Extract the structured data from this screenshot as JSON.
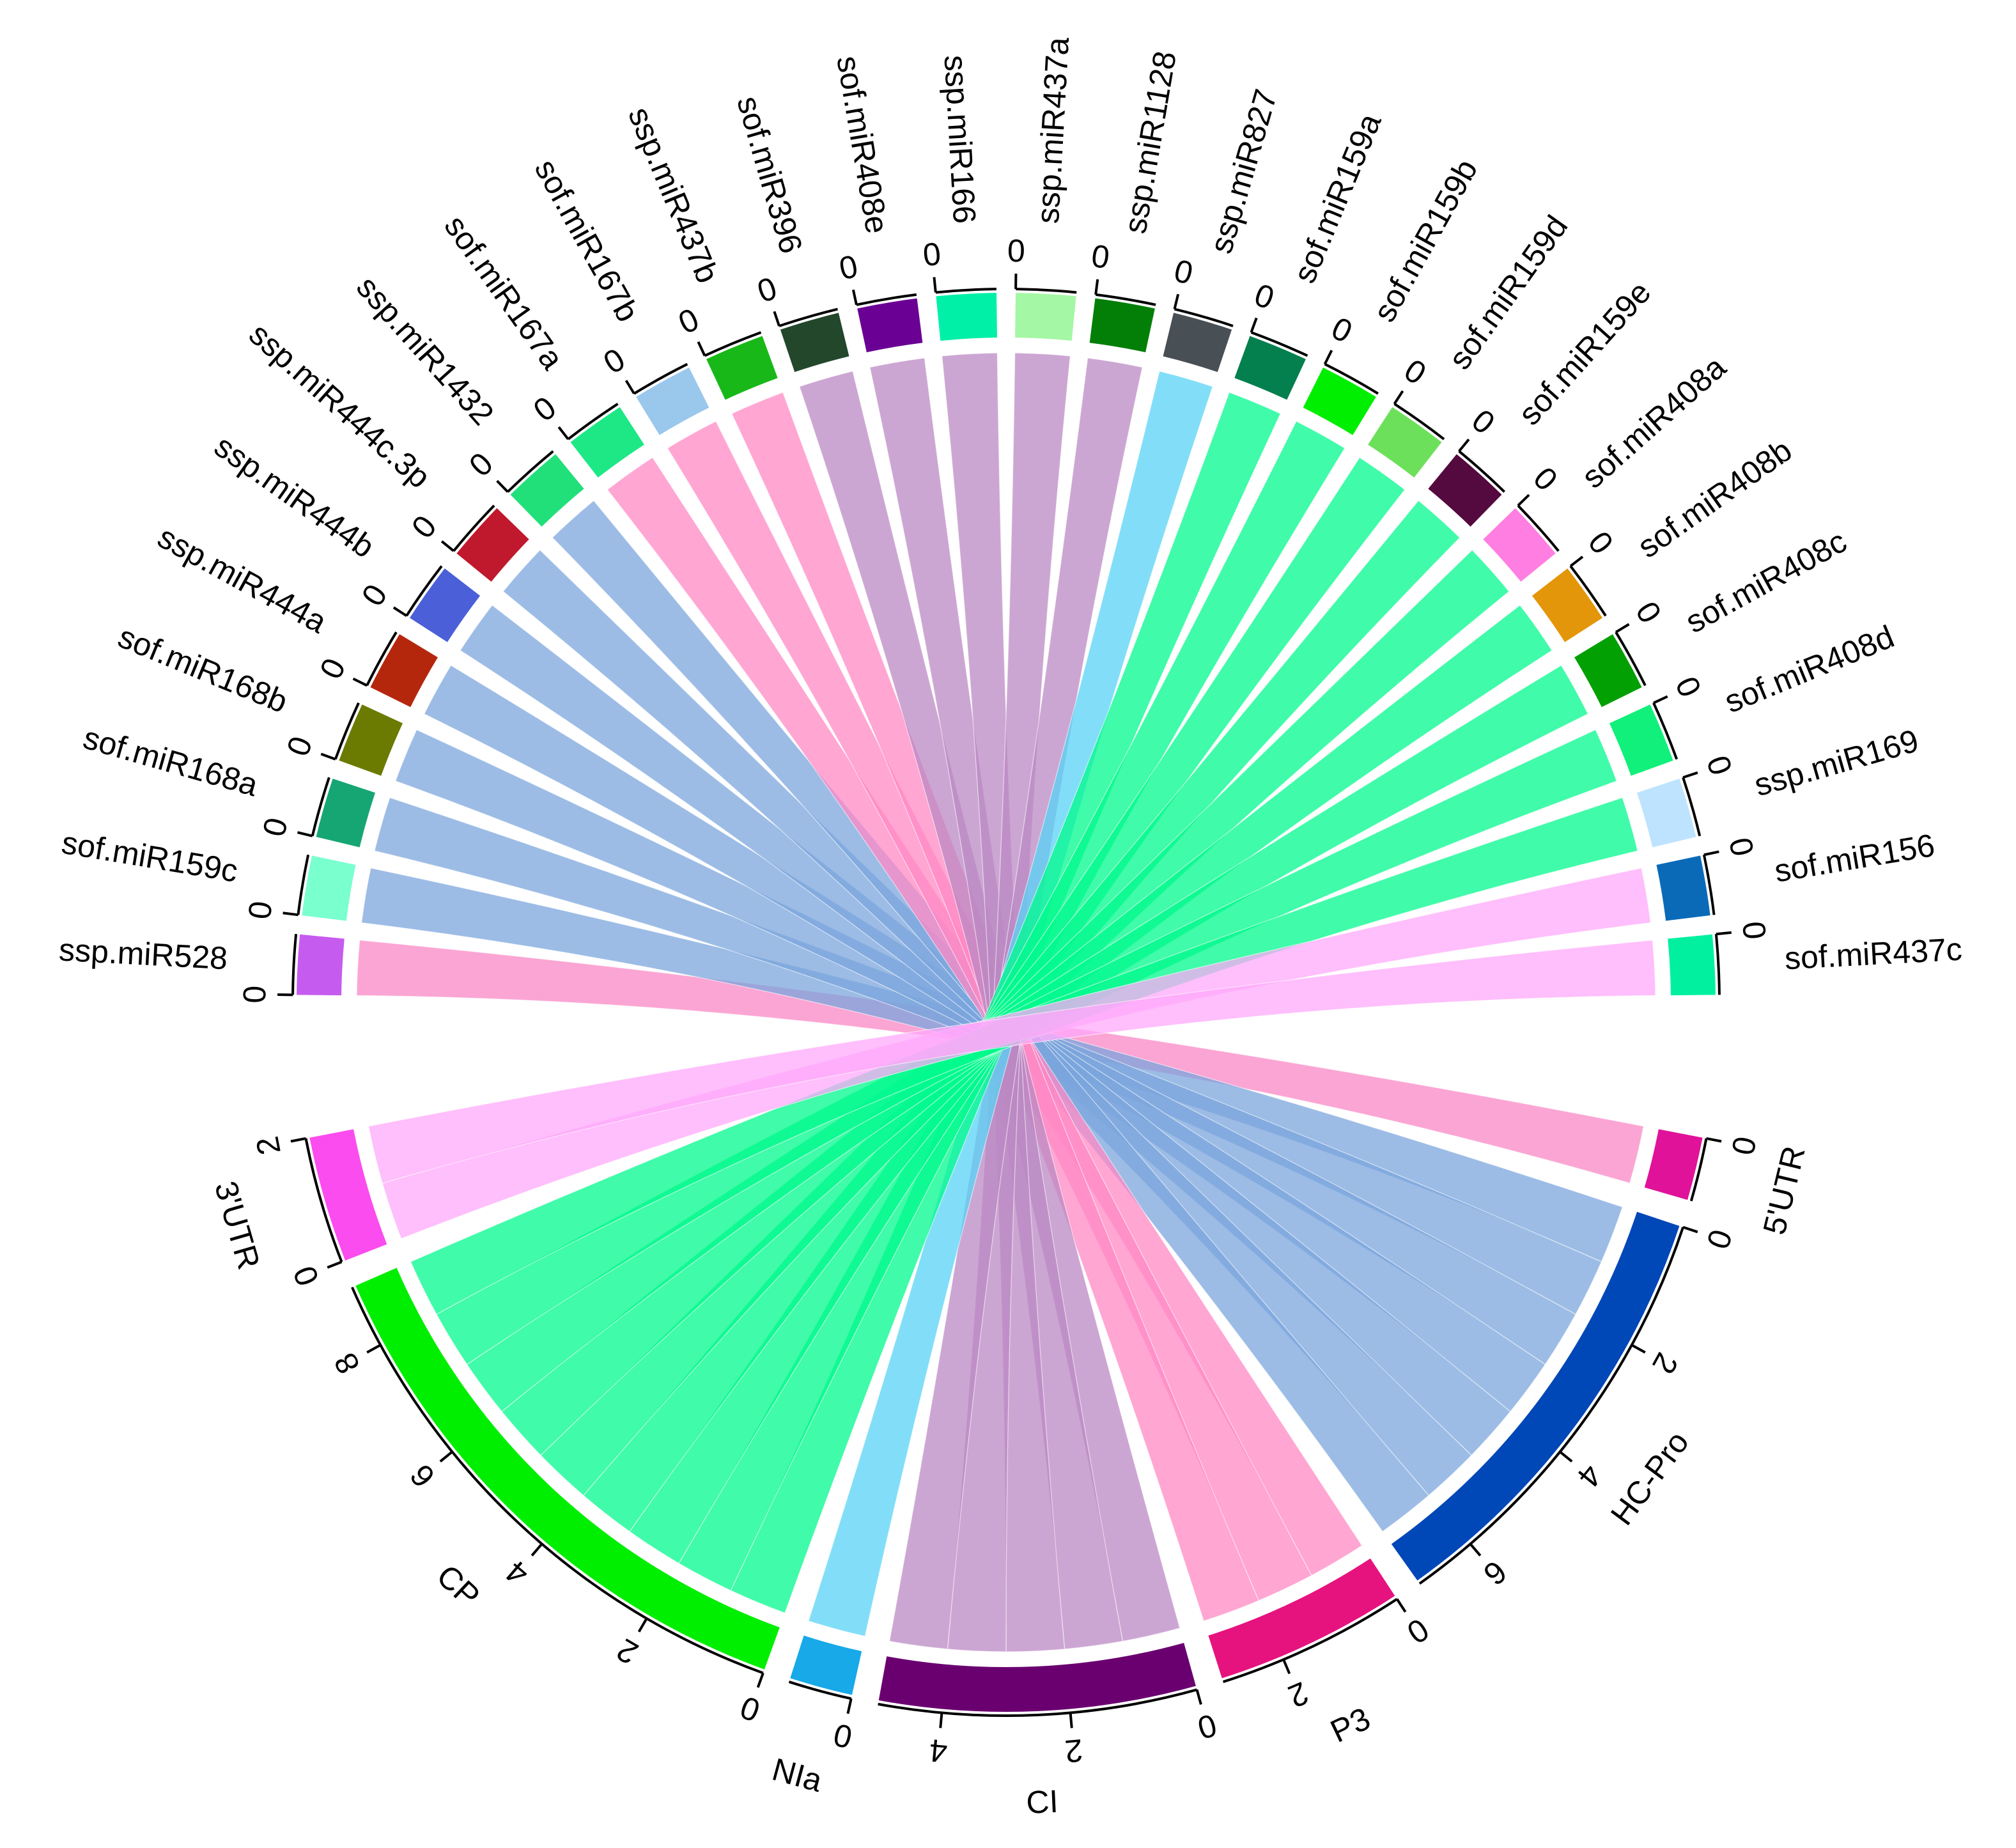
{
  "chart_data": {
    "type": "chord",
    "sources": [
      {
        "name": "ssp.miR528",
        "color": "#c65bf0",
        "value": 1,
        "ticks": [
          0
        ]
      },
      {
        "name": "sof.miR159c",
        "color": "#7affcf",
        "value": 1,
        "ticks": [
          0
        ]
      },
      {
        "name": "sof.miR168a",
        "color": "#16a673",
        "value": 1,
        "ticks": [
          0
        ]
      },
      {
        "name": "sof.miR168b",
        "color": "#6b7a00",
        "value": 1,
        "ticks": [
          0
        ]
      },
      {
        "name": "ssp.miR444a",
        "color": "#b5270d",
        "value": 1,
        "ticks": [
          0
        ]
      },
      {
        "name": "ssp.miR444b",
        "color": "#4b5fd8",
        "value": 1,
        "ticks": [
          0
        ]
      },
      {
        "name": "ssp.miR444c.3p",
        "color": "#c0182c",
        "value": 1,
        "ticks": [
          0
        ]
      },
      {
        "name": "ssp.miR1432",
        "color": "#21e07a",
        "value": 1,
        "ticks": [
          0
        ]
      },
      {
        "name": "sof.miR167a",
        "color": "#1de885",
        "value": 1,
        "ticks": [
          0
        ]
      },
      {
        "name": "sof.miR167b",
        "color": "#9ac7ec",
        "value": 1,
        "ticks": [
          0
        ]
      },
      {
        "name": "ssp.miR437b",
        "color": "#18b818",
        "value": 1,
        "ticks": [
          0
        ]
      },
      {
        "name": "sof.miR396",
        "color": "#22472b",
        "value": 1,
        "ticks": [
          0
        ]
      },
      {
        "name": "sof.miR408e",
        "color": "#6b0094",
        "value": 1,
        "ticks": [
          0
        ]
      },
      {
        "name": "ssp.miR166",
        "color": "#00f0a8",
        "value": 1,
        "ticks": [
          0
        ]
      },
      {
        "name": "ssp.miR437a",
        "color": "#a4f7a4",
        "value": 1,
        "ticks": [
          0
        ]
      },
      {
        "name": "ssp.miR1128",
        "color": "#037f08",
        "value": 1,
        "ticks": [
          0
        ]
      },
      {
        "name": "ssp.miR827",
        "color": "#484f55",
        "value": 1,
        "ticks": [
          0
        ]
      },
      {
        "name": "sof.miR159a",
        "color": "#047f4e",
        "value": 1,
        "ticks": [
          0
        ]
      },
      {
        "name": "sof.miR159b",
        "color": "#00ee00",
        "value": 1,
        "ticks": [
          0
        ]
      },
      {
        "name": "sof.miR159d",
        "color": "#6ce05a",
        "value": 1,
        "ticks": [
          0
        ]
      },
      {
        "name": "sof.miR159e",
        "color": "#54093f",
        "value": 1,
        "ticks": [
          0
        ]
      },
      {
        "name": "sof.miR408a",
        "color": "#ff7ee2",
        "value": 1,
        "ticks": [
          0
        ]
      },
      {
        "name": "sof.miR408b",
        "color": "#e3960a",
        "value": 1,
        "ticks": [
          0
        ]
      },
      {
        "name": "sof.miR408c",
        "color": "#03a003",
        "value": 1,
        "ticks": [
          0
        ]
      },
      {
        "name": "sof.miR408d",
        "color": "#10f07a",
        "value": 1,
        "ticks": [
          0
        ]
      },
      {
        "name": "ssp.miR169",
        "color": "#bee3ff",
        "value": 1,
        "ticks": [
          0
        ]
      },
      {
        "name": "sof.miR156",
        "color": "#0a6ab8",
        "value": 1,
        "ticks": [
          0
        ]
      },
      {
        "name": "sof.miR437c",
        "color": "#00f0a0",
        "value": 1,
        "ticks": [
          0
        ]
      }
    ],
    "targets": [
      {
        "name": "5'UTR",
        "color": "#e0129a",
        "chord_color": "#f987c5",
        "value": 1,
        "ticks": [
          0
        ]
      },
      {
        "name": "HC-Pro",
        "color": "#0047b8",
        "chord_color": "#7ba6dc",
        "value": 7,
        "ticks": [
          0,
          2,
          4,
          6
        ]
      },
      {
        "name": "P3",
        "color": "#e6137e",
        "chord_color": "#ff88c4",
        "value": 3,
        "ticks": [
          0,
          2
        ]
      },
      {
        "name": "CI",
        "color": "#6a0070",
        "chord_color": "#bb88c3",
        "value": 5,
        "ticks": [
          0,
          2,
          4
        ]
      },
      {
        "name": "NIa",
        "color": "#17a9e8",
        "chord_color": "#58d3f5",
        "value": 1,
        "ticks": [
          0
        ]
      },
      {
        "name": "CP",
        "color": "#00ee00",
        "chord_color": "#00fa8c",
        "value": 9,
        "ticks": [
          0,
          2,
          4,
          6,
          8
        ]
      },
      {
        "name": "3'UTR",
        "color": "#fb4cef",
        "chord_color": "#ffa8fb",
        "value": 2,
        "ticks": [
          0,
          2
        ]
      }
    ],
    "links": [
      {
        "source": "ssp.miR528",
        "target": "5'UTR",
        "value": 1
      },
      {
        "source": "sof.miR159c",
        "target": "HC-Pro",
        "value": 1
      },
      {
        "source": "sof.miR168a",
        "target": "HC-Pro",
        "value": 1
      },
      {
        "source": "sof.miR168b",
        "target": "HC-Pro",
        "value": 1
      },
      {
        "source": "ssp.miR444a",
        "target": "HC-Pro",
        "value": 1
      },
      {
        "source": "ssp.miR444b",
        "target": "HC-Pro",
        "value": 1
      },
      {
        "source": "ssp.miR444c.3p",
        "target": "HC-Pro",
        "value": 1
      },
      {
        "source": "ssp.miR1432",
        "target": "HC-Pro",
        "value": 1
      },
      {
        "source": "sof.miR167a",
        "target": "P3",
        "value": 1
      },
      {
        "source": "sof.miR167b",
        "target": "P3",
        "value": 1
      },
      {
        "source": "ssp.miR437b",
        "target": "P3",
        "value": 1
      },
      {
        "source": "sof.miR396",
        "target": "CI",
        "value": 1
      },
      {
        "source": "sof.miR408e",
        "target": "CI",
        "value": 1
      },
      {
        "source": "ssp.miR166",
        "target": "CI",
        "value": 1
      },
      {
        "source": "ssp.miR437a",
        "target": "CI",
        "value": 1
      },
      {
        "source": "ssp.miR1128",
        "target": "CI",
        "value": 1
      },
      {
        "source": "ssp.miR827",
        "target": "NIa",
        "value": 1
      },
      {
        "source": "sof.miR159a",
        "target": "CP",
        "value": 1
      },
      {
        "source": "sof.miR159b",
        "target": "CP",
        "value": 1
      },
      {
        "source": "sof.miR159d",
        "target": "CP",
        "value": 1
      },
      {
        "source": "sof.miR159e",
        "target": "CP",
        "value": 1
      },
      {
        "source": "sof.miR408a",
        "target": "CP",
        "value": 1
      },
      {
        "source": "sof.miR408b",
        "target": "CP",
        "value": 1
      },
      {
        "source": "sof.miR408c",
        "target": "CP",
        "value": 1
      },
      {
        "source": "sof.miR408d",
        "target": "CP",
        "value": 1
      },
      {
        "source": "ssp.miR169",
        "target": "CP",
        "value": 1
      },
      {
        "source": "sof.miR156",
        "target": "3'UTR",
        "value": 1
      },
      {
        "source": "sof.miR437c",
        "target": "3'UTR",
        "value": 1
      }
    ]
  }
}
